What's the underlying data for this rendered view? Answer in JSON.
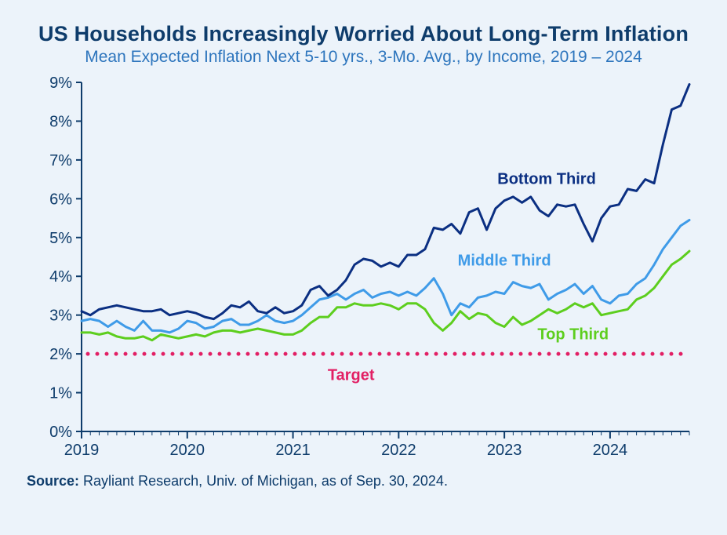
{
  "title": "US Households Increasingly Worried About Long-Term Inflation",
  "subtitle": "Mean Expected Inflation Next 5-10 yrs., 3-Mo. Avg., by Income, 2019 – 2024",
  "source_label": "Source:",
  "source_text": " Rayliant Research, Univ. of Michigan, as of Sep. 30, 2024.",
  "chart": {
    "type": "line",
    "background_color": "#ecf3fa",
    "plot_bg": "#ecf3fa",
    "x_axis": {
      "min": 2019.0,
      "max": 2024.75,
      "ticks": [
        2019,
        2020,
        2021,
        2022,
        2023,
        2024
      ],
      "tick_labels": [
        "2019",
        "2020",
        "2021",
        "2022",
        "2023",
        "2024"
      ],
      "tick_color": "#0e3c6b",
      "tick_fontsize": 20,
      "axis_color": "#0e3c6b",
      "axis_width": 2,
      "minor_tick_count_between": 12
    },
    "y_axis": {
      "min": 0,
      "max": 9,
      "ticks": [
        0,
        1,
        2,
        3,
        4,
        5,
        6,
        7,
        8,
        9
      ],
      "tick_labels": [
        "0%",
        "1%",
        "2%",
        "3%",
        "4%",
        "5%",
        "6%",
        "7%",
        "8%",
        "9%"
      ],
      "tick_color": "#0e3c6b",
      "tick_fontsize": 20,
      "axis_color": "#0e3c6b",
      "axis_width": 2
    },
    "target_line": {
      "value": 2.0,
      "color": "#e21f64",
      "style": "dotted",
      "dot_radius": 2.5,
      "dot_spacing": 12,
      "label": "Target",
      "label_color": "#e21f64",
      "label_fontsize": 20,
      "label_x": 2021.55,
      "label_y": 1.45
    },
    "series": [
      {
        "name": "Bottom Third",
        "color": "#0b2f82",
        "line_width": 3,
        "label": "Bottom Third",
        "label_fontsize": 20,
        "label_x": 2023.4,
        "label_y": 6.5,
        "points": [
          [
            2019.0,
            3.1
          ],
          [
            2019.083,
            3.0
          ],
          [
            2019.167,
            3.15
          ],
          [
            2019.25,
            3.2
          ],
          [
            2019.333,
            3.25
          ],
          [
            2019.417,
            3.2
          ],
          [
            2019.5,
            3.15
          ],
          [
            2019.583,
            3.1
          ],
          [
            2019.667,
            3.1
          ],
          [
            2019.75,
            3.15
          ],
          [
            2019.833,
            3.0
          ],
          [
            2019.917,
            3.05
          ],
          [
            2020.0,
            3.1
          ],
          [
            2020.083,
            3.05
          ],
          [
            2020.167,
            2.95
          ],
          [
            2020.25,
            2.9
          ],
          [
            2020.333,
            3.05
          ],
          [
            2020.417,
            3.25
          ],
          [
            2020.5,
            3.2
          ],
          [
            2020.583,
            3.35
          ],
          [
            2020.667,
            3.1
          ],
          [
            2020.75,
            3.05
          ],
          [
            2020.833,
            3.2
          ],
          [
            2020.917,
            3.05
          ],
          [
            2021.0,
            3.1
          ],
          [
            2021.083,
            3.25
          ],
          [
            2021.167,
            3.65
          ],
          [
            2021.25,
            3.75
          ],
          [
            2021.333,
            3.5
          ],
          [
            2021.417,
            3.65
          ],
          [
            2021.5,
            3.9
          ],
          [
            2021.583,
            4.3
          ],
          [
            2021.667,
            4.45
          ],
          [
            2021.75,
            4.4
          ],
          [
            2021.833,
            4.25
          ],
          [
            2021.917,
            4.35
          ],
          [
            2022.0,
            4.25
          ],
          [
            2022.083,
            4.55
          ],
          [
            2022.167,
            4.55
          ],
          [
            2022.25,
            4.7
          ],
          [
            2022.333,
            5.25
          ],
          [
            2022.417,
            5.2
          ],
          [
            2022.5,
            5.35
          ],
          [
            2022.583,
            5.1
          ],
          [
            2022.667,
            5.65
          ],
          [
            2022.75,
            5.75
          ],
          [
            2022.833,
            5.2
          ],
          [
            2022.917,
            5.75
          ],
          [
            2023.0,
            5.95
          ],
          [
            2023.083,
            6.05
          ],
          [
            2023.167,
            5.9
          ],
          [
            2023.25,
            6.05
          ],
          [
            2023.333,
            5.7
          ],
          [
            2023.417,
            5.55
          ],
          [
            2023.5,
            5.85
          ],
          [
            2023.583,
            5.8
          ],
          [
            2023.667,
            5.85
          ],
          [
            2023.75,
            5.35
          ],
          [
            2023.833,
            4.9
          ],
          [
            2023.917,
            5.5
          ],
          [
            2024.0,
            5.8
          ],
          [
            2024.083,
            5.85
          ],
          [
            2024.167,
            6.25
          ],
          [
            2024.25,
            6.2
          ],
          [
            2024.333,
            6.5
          ],
          [
            2024.417,
            6.4
          ],
          [
            2024.5,
            7.4
          ],
          [
            2024.583,
            8.3
          ],
          [
            2024.667,
            8.4
          ],
          [
            2024.75,
            8.95
          ]
        ]
      },
      {
        "name": "Middle Third",
        "color": "#3f9be8",
        "line_width": 3,
        "label": "Middle Third",
        "label_fontsize": 20,
        "label_x": 2023.0,
        "label_y": 4.4,
        "points": [
          [
            2019.0,
            2.85
          ],
          [
            2019.083,
            2.9
          ],
          [
            2019.167,
            2.85
          ],
          [
            2019.25,
            2.7
          ],
          [
            2019.333,
            2.85
          ],
          [
            2019.417,
            2.7
          ],
          [
            2019.5,
            2.6
          ],
          [
            2019.583,
            2.85
          ],
          [
            2019.667,
            2.6
          ],
          [
            2019.75,
            2.6
          ],
          [
            2019.833,
            2.55
          ],
          [
            2019.917,
            2.65
          ],
          [
            2020.0,
            2.85
          ],
          [
            2020.083,
            2.8
          ],
          [
            2020.167,
            2.65
          ],
          [
            2020.25,
            2.7
          ],
          [
            2020.333,
            2.85
          ],
          [
            2020.417,
            2.9
          ],
          [
            2020.5,
            2.75
          ],
          [
            2020.583,
            2.75
          ],
          [
            2020.667,
            2.85
          ],
          [
            2020.75,
            3.0
          ],
          [
            2020.833,
            2.85
          ],
          [
            2020.917,
            2.8
          ],
          [
            2021.0,
            2.85
          ],
          [
            2021.083,
            3.0
          ],
          [
            2021.167,
            3.2
          ],
          [
            2021.25,
            3.4
          ],
          [
            2021.333,
            3.45
          ],
          [
            2021.417,
            3.55
          ],
          [
            2021.5,
            3.4
          ],
          [
            2021.583,
            3.55
          ],
          [
            2021.667,
            3.65
          ],
          [
            2021.75,
            3.45
          ],
          [
            2021.833,
            3.55
          ],
          [
            2021.917,
            3.6
          ],
          [
            2022.0,
            3.5
          ],
          [
            2022.083,
            3.6
          ],
          [
            2022.167,
            3.5
          ],
          [
            2022.25,
            3.7
          ],
          [
            2022.333,
            3.95
          ],
          [
            2022.417,
            3.55
          ],
          [
            2022.5,
            3.0
          ],
          [
            2022.583,
            3.3
          ],
          [
            2022.667,
            3.2
          ],
          [
            2022.75,
            3.45
          ],
          [
            2022.833,
            3.5
          ],
          [
            2022.917,
            3.6
          ],
          [
            2023.0,
            3.55
          ],
          [
            2023.083,
            3.85
          ],
          [
            2023.167,
            3.75
          ],
          [
            2023.25,
            3.7
          ],
          [
            2023.333,
            3.8
          ],
          [
            2023.417,
            3.4
          ],
          [
            2023.5,
            3.55
          ],
          [
            2023.583,
            3.65
          ],
          [
            2023.667,
            3.8
          ],
          [
            2023.75,
            3.55
          ],
          [
            2023.833,
            3.75
          ],
          [
            2023.917,
            3.4
          ],
          [
            2024.0,
            3.3
          ],
          [
            2024.083,
            3.5
          ],
          [
            2024.167,
            3.55
          ],
          [
            2024.25,
            3.8
          ],
          [
            2024.333,
            3.95
          ],
          [
            2024.417,
            4.3
          ],
          [
            2024.5,
            4.7
          ],
          [
            2024.583,
            5.0
          ],
          [
            2024.667,
            5.3
          ],
          [
            2024.75,
            5.45
          ]
        ]
      },
      {
        "name": "Top Third",
        "color": "#5dce1e",
        "line_width": 3,
        "label": "Top Third",
        "label_fontsize": 20,
        "label_x": 2023.65,
        "label_y": 2.5,
        "points": [
          [
            2019.0,
            2.55
          ],
          [
            2019.083,
            2.55
          ],
          [
            2019.167,
            2.5
          ],
          [
            2019.25,
            2.55
          ],
          [
            2019.333,
            2.45
          ],
          [
            2019.417,
            2.4
          ],
          [
            2019.5,
            2.4
          ],
          [
            2019.583,
            2.45
          ],
          [
            2019.667,
            2.35
          ],
          [
            2019.75,
            2.5
          ],
          [
            2019.833,
            2.45
          ],
          [
            2019.917,
            2.4
          ],
          [
            2020.0,
            2.45
          ],
          [
            2020.083,
            2.5
          ],
          [
            2020.167,
            2.45
          ],
          [
            2020.25,
            2.55
          ],
          [
            2020.333,
            2.6
          ],
          [
            2020.417,
            2.6
          ],
          [
            2020.5,
            2.55
          ],
          [
            2020.583,
            2.6
          ],
          [
            2020.667,
            2.65
          ],
          [
            2020.75,
            2.6
          ],
          [
            2020.833,
            2.55
          ],
          [
            2020.917,
            2.5
          ],
          [
            2021.0,
            2.5
          ],
          [
            2021.083,
            2.6
          ],
          [
            2021.167,
            2.8
          ],
          [
            2021.25,
            2.95
          ],
          [
            2021.333,
            2.95
          ],
          [
            2021.417,
            3.2
          ],
          [
            2021.5,
            3.2
          ],
          [
            2021.583,
            3.3
          ],
          [
            2021.667,
            3.25
          ],
          [
            2021.75,
            3.25
          ],
          [
            2021.833,
            3.3
          ],
          [
            2021.917,
            3.25
          ],
          [
            2022.0,
            3.15
          ],
          [
            2022.083,
            3.3
          ],
          [
            2022.167,
            3.3
          ],
          [
            2022.25,
            3.15
          ],
          [
            2022.333,
            2.8
          ],
          [
            2022.417,
            2.6
          ],
          [
            2022.5,
            2.8
          ],
          [
            2022.583,
            3.1
          ],
          [
            2022.667,
            2.9
          ],
          [
            2022.75,
            3.05
          ],
          [
            2022.833,
            3.0
          ],
          [
            2022.917,
            2.8
          ],
          [
            2023.0,
            2.7
          ],
          [
            2023.083,
            2.95
          ],
          [
            2023.167,
            2.75
          ],
          [
            2023.25,
            2.85
          ],
          [
            2023.333,
            3.0
          ],
          [
            2023.417,
            3.15
          ],
          [
            2023.5,
            3.05
          ],
          [
            2023.583,
            3.15
          ],
          [
            2023.667,
            3.3
          ],
          [
            2023.75,
            3.2
          ],
          [
            2023.833,
            3.3
          ],
          [
            2023.917,
            3.0
          ],
          [
            2024.0,
            3.05
          ],
          [
            2024.083,
            3.1
          ],
          [
            2024.167,
            3.15
          ],
          [
            2024.25,
            3.4
          ],
          [
            2024.333,
            3.5
          ],
          [
            2024.417,
            3.7
          ],
          [
            2024.5,
            4.0
          ],
          [
            2024.583,
            4.3
          ],
          [
            2024.667,
            4.45
          ],
          [
            2024.75,
            4.65
          ]
        ]
      }
    ]
  }
}
